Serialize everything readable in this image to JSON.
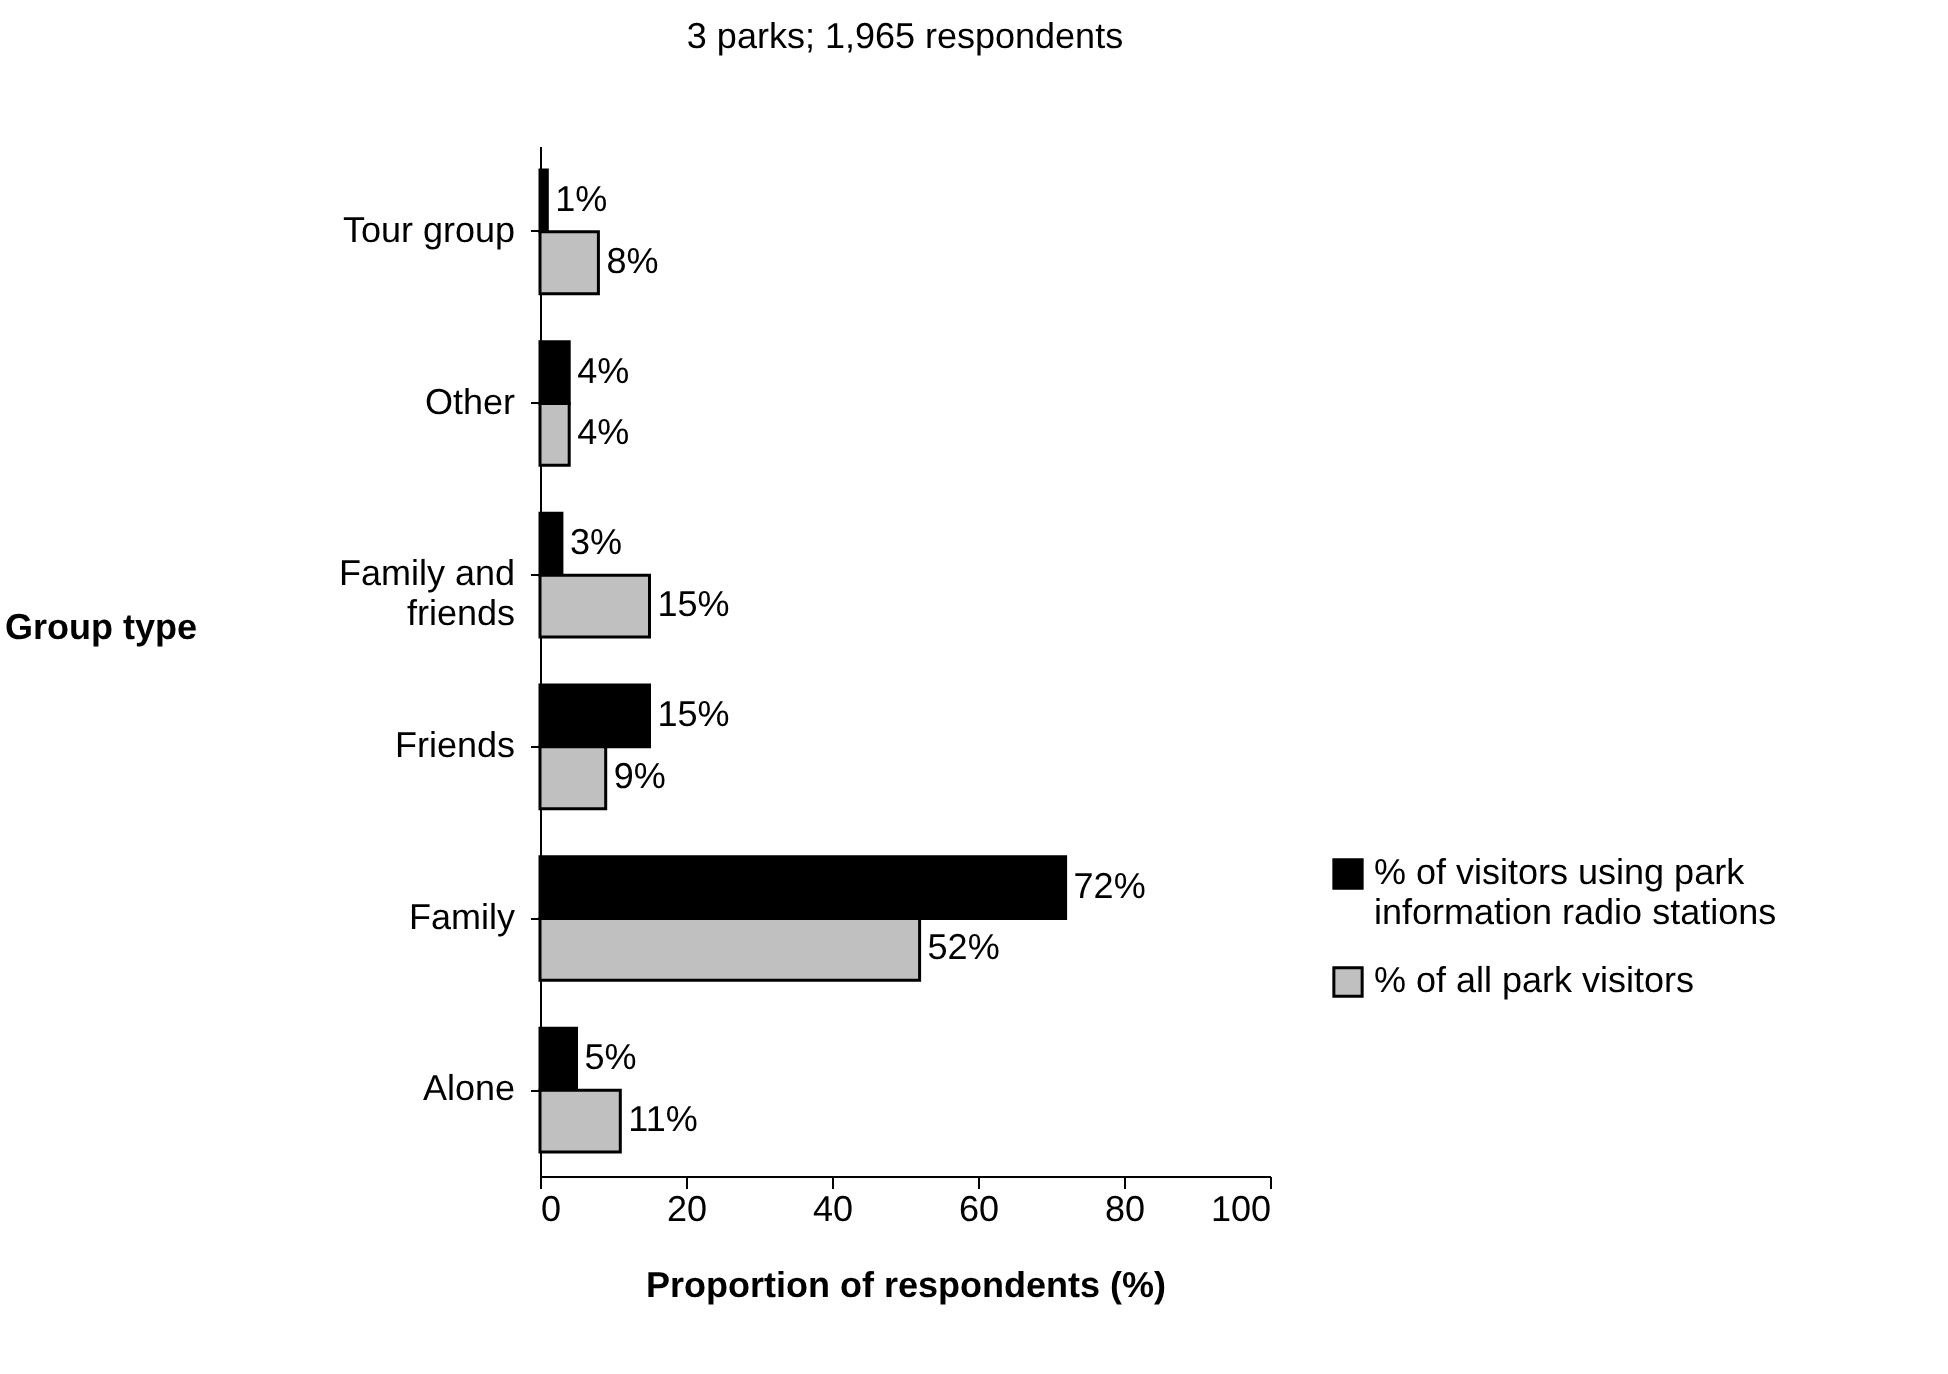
{
  "chart_data": {
    "type": "bar",
    "orientation": "horizontal",
    "subtitle": "3 parks; 1,965 respondents",
    "xlabel": "Proportion of respondents (%)",
    "ylabel": "Group type",
    "categories": [
      "Tour group",
      "Other",
      "Family and friends",
      "Friends",
      "Family",
      "Alone"
    ],
    "series": [
      {
        "name": "% of visitors using park information radio stations",
        "color": "#000000",
        "values": [
          1,
          4,
          3,
          15,
          72,
          5
        ],
        "value_labels": [
          "1%",
          "4%",
          "3%",
          "15%",
          "72%",
          "5%"
        ]
      },
      {
        "name": "% of all park visitors",
        "color": "#c0c0c0",
        "values": [
          8,
          4,
          15,
          9,
          52,
          11
        ],
        "value_labels": [
          "8%",
          "4%",
          "15%",
          "9%",
          "52%",
          "11%"
        ]
      }
    ],
    "xlim": [
      0,
      100
    ],
    "xticks": [
      0,
      20,
      40,
      60,
      80,
      100
    ],
    "grid": false,
    "legend": "right"
  }
}
